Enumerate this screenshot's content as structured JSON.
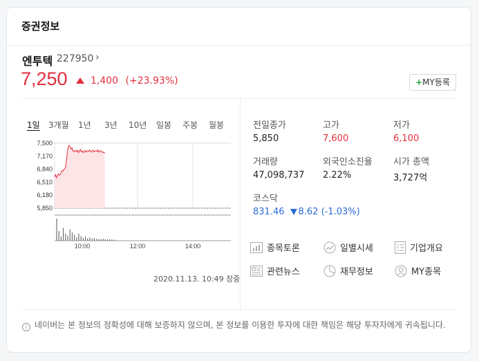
{
  "header": {
    "title": "증권정보"
  },
  "stock": {
    "name": "엔투텍",
    "code": "227950",
    "chevron": "›",
    "price": "7,250",
    "change": "1,400",
    "change_pct": "(+23.93%)",
    "up_color": "#e12f3d"
  },
  "my_button": {
    "plus": "+",
    "label": "MY등록"
  },
  "chart_tabs": [
    "1일",
    "3개월",
    "1년",
    "3년",
    "10년",
    "일봉",
    "주봉",
    "월봉"
  ],
  "chart_data": {
    "type": "area",
    "title": "",
    "y_ticks": [
      "7,500",
      "7,170",
      "6,840",
      "6,510",
      "6,180",
      "5,850"
    ],
    "ylim": [
      5850,
      7500
    ],
    "x_ticks": [
      "10:00",
      "12:00",
      "14:00"
    ],
    "series": [
      {
        "x": [
          "09:00",
          "09:02",
          "09:04",
          "09:06",
          "09:08",
          "09:10",
          "09:12",
          "09:14",
          "09:16",
          "09:18",
          "09:20",
          "09:22",
          "09:24",
          "09:26",
          "09:28",
          "09:30",
          "09:32",
          "09:34",
          "09:36",
          "09:38",
          "09:40",
          "09:42",
          "09:44",
          "09:46",
          "09:48",
          "09:50",
          "09:52",
          "09:54",
          "09:56",
          "09:58",
          "10:00",
          "10:02",
          "10:04",
          "10:06",
          "10:08",
          "10:10",
          "10:12",
          "10:14",
          "10:16",
          "10:18",
          "10:20",
          "10:22",
          "10:24",
          "10:26",
          "10:28",
          "10:30",
          "10:32",
          "10:34",
          "10:36",
          "10:38",
          "10:40",
          "10:42",
          "10:44",
          "10:46",
          "10:48",
          "10:49"
        ],
        "values": [
          6650,
          6700,
          6620,
          6680,
          6720,
          6690,
          6700,
          6750,
          6800,
          6790,
          6830,
          6850,
          6900,
          7100,
          7300,
          7420,
          7440,
          7400,
          7350,
          7380,
          7300,
          7280,
          7320,
          7310,
          7280,
          7320,
          7260,
          7300,
          7340,
          7280,
          7300,
          7260,
          7290,
          7320,
          7270,
          7300,
          7310,
          7290,
          7330,
          7300,
          7270,
          7300,
          7320,
          7280,
          7300,
          7310,
          7290,
          7330,
          7270,
          7300,
          7310,
          7290,
          7260,
          7280,
          7260,
          7250
        ]
      }
    ],
    "volume": [
      95,
      42,
      18,
      55,
      30,
      22,
      48,
      35,
      25,
      15,
      30,
      20,
      12,
      18,
      10,
      14,
      9,
      12,
      8,
      7,
      6,
      8,
      6,
      5,
      6,
      5,
      4
    ],
    "line_color": "#e12f3d",
    "fill_color": "#fde4e6",
    "session_end": "10:49"
  },
  "timestamp": "2020.11.13. 10:49 장중",
  "stats": {
    "prev_close_label": "전일종가",
    "prev_close": "5,850",
    "high_label": "고가",
    "high": "7,600",
    "low_label": "저가",
    "low": "6,100",
    "volume_label": "거래량",
    "volume": "47,098,737",
    "foreign_label": "외국인소진율",
    "foreign": "2.22%",
    "mcap_label": "시가 총액",
    "mcap": "3,727억",
    "index_label": "코스닥",
    "index_value": "831.46",
    "index_change": "8.62 (-1.03%)"
  },
  "links": [
    {
      "label": "종목토론",
      "icon": "chart-icon"
    },
    {
      "label": "일별시세",
      "icon": "trend-icon"
    },
    {
      "label": "기업개요",
      "icon": "document-icon"
    },
    {
      "label": "관련뉴스",
      "icon": "news-icon"
    },
    {
      "label": "재무정보",
      "icon": "pie-icon"
    },
    {
      "label": "MY종목",
      "icon": "user-icon"
    }
  ],
  "notice": "네이버는 본 정보의 정확성에 대해 보증하지 않으며, 본 정보를 이용한 투자에 대한 책임은 해당 투자자에게 귀속됩니다.",
  "info_icon_glyph": "i"
}
